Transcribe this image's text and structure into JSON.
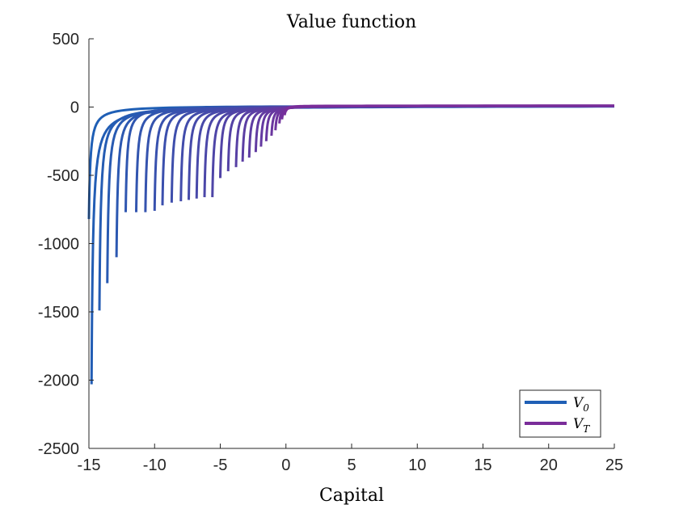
{
  "chart_data": {
    "type": "line",
    "title": "Value function",
    "xlabel": "Capital",
    "ylabel": "",
    "xlim": [
      -15,
      25
    ],
    "ylim": [
      -2500,
      500
    ],
    "xticks": [
      -15,
      -10,
      -5,
      0,
      5,
      10,
      15,
      20,
      25
    ],
    "yticks": [
      500,
      0,
      -500,
      -1000,
      -1500,
      -2000,
      -2500
    ],
    "grid": false,
    "legend": {
      "placement": "bottom-right"
    },
    "colors": {
      "first": "#1f5fb5",
      "last": "#7a2d9a",
      "axis": "#262626"
    },
    "series": [
      {
        "name": "V_0",
        "label_main": "V",
        "label_sub": "0",
        "color": "#1f5fb5"
      },
      {
        "name": "V_T",
        "label_main": "V",
        "label_sub": "T",
        "color": "#7a2d9a"
      }
    ],
    "curve_family": {
      "count": 30,
      "description_note_free": true,
      "min_capital": [
        -15.0,
        -14.8,
        -14.2,
        -13.6,
        -12.9,
        -12.2,
        -11.4,
        -10.7,
        -10.0,
        -9.4,
        -8.7,
        -8.0,
        -7.4,
        -6.8,
        -6.2,
        -5.6,
        -5.0,
        -4.4,
        -3.8,
        -3.3,
        -2.8,
        -2.3,
        -1.9,
        -1.5,
        -1.1,
        -0.8,
        -0.5,
        -0.3,
        -0.1,
        0.0
      ],
      "min_value": [
        -820,
        -2030,
        -1490,
        -1290,
        -1100,
        -770,
        -770,
        -770,
        -760,
        -720,
        -700,
        -690,
        -680,
        -670,
        -660,
        -660,
        -520,
        -470,
        -440,
        -400,
        -370,
        -330,
        -290,
        -250,
        -210,
        -170,
        -120,
        -90,
        -60,
        -30
      ],
      "plateau_value": 10
    }
  }
}
